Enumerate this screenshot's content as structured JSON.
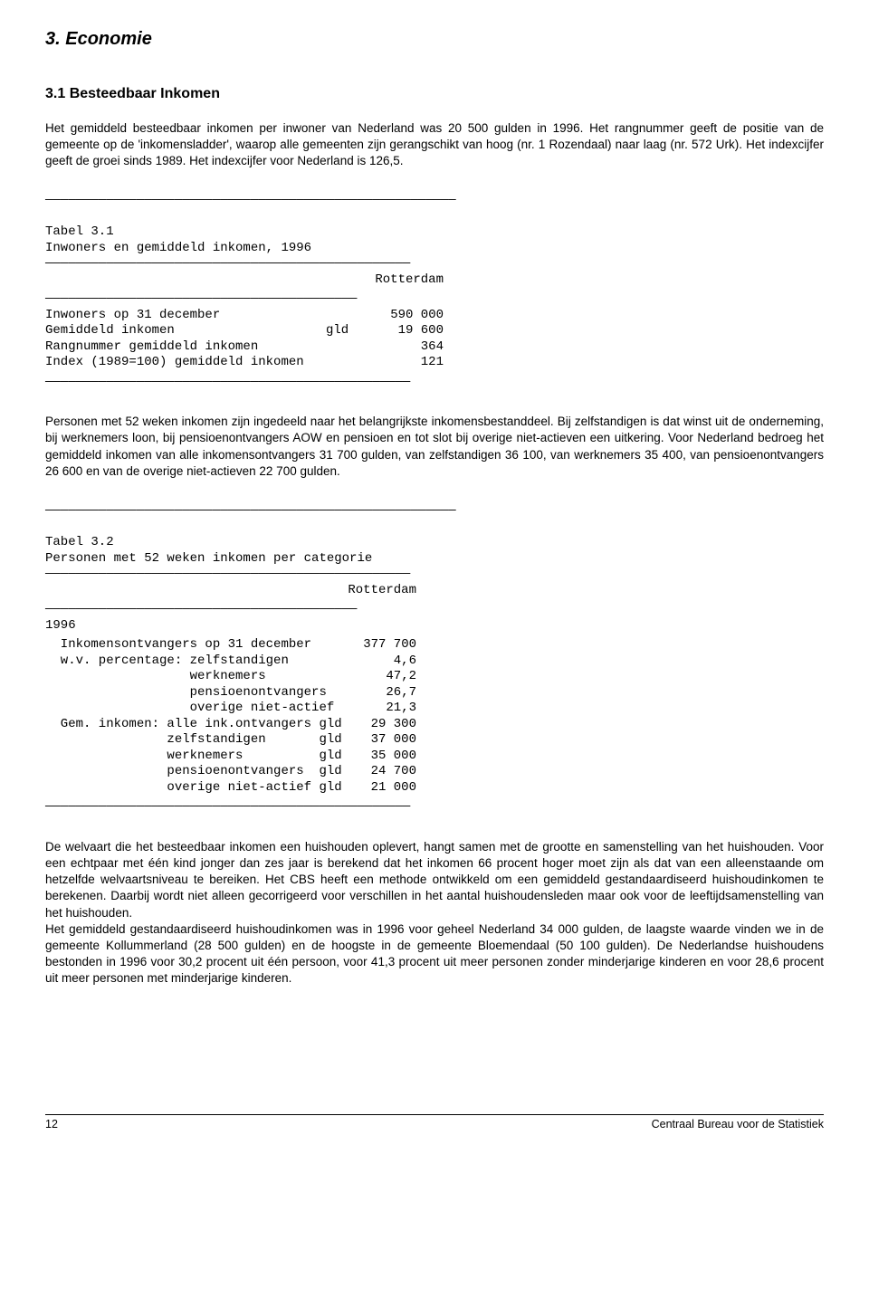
{
  "headings": {
    "h1": "3. Economie",
    "h2": "3.1 Besteedbaar Inkomen"
  },
  "para1": "Het gemiddeld besteedbaar inkomen per inwoner van Nederland was 20 500 gulden in 1996. Het rangnummer geeft de positie van de gemeente op de 'inkomensladder', waarop alle gemeenten zijn gerangschikt van hoog (nr. 1 Rozendaal) naar laag (nr. 572 Urk). Het indexcijfer geeft de groei sinds 1989. Het indexcijfer voor Nederland is 126,5.",
  "table1": {
    "rule_long": "——————————————————————————————————————————————————————",
    "rule_mid": "————————————————————————————————————————————————",
    "rule_short": "—————————————————————————————————————————",
    "title_line": "Tabel 3.1",
    "subtitle_line": "Inwoners en gemiddeld inkomen, 1996",
    "col_header": "Rotterdam",
    "rows": [
      {
        "label": "Inwoners op 31 december",
        "unit": "",
        "value": "590 000"
      },
      {
        "label": "Gemiddeld inkomen",
        "unit": "gld",
        "value": "19 600"
      },
      {
        "label": "Rangnummer gemiddeld inkomen",
        "unit": "",
        "value": "364"
      },
      {
        "label": "Index (1989=100) gemiddeld inkomen",
        "unit": "",
        "value": "121"
      }
    ]
  },
  "para2": "Personen met 52 weken inkomen zijn ingedeeld naar het belangrijkste inkomensbestanddeel. Bij zelfstandigen is dat winst uit de onderneming, bij werknemers loon, bij pensioenontvangers AOW en pensioen en tot slot bij overige niet-actieven een uitkering. Voor Nederland bedroeg het gemiddeld inkomen van alle inkomensontvangers 31 700 gulden, van zelfstandigen 36 100, van werknemers 35 400, van pensioenontvangers 26 600 en van de overige niet-actieven 22 700 gulden.",
  "table2": {
    "rule_long": "——————————————————————————————————————————————————————",
    "rule_mid": "————————————————————————————————————————————————",
    "rule_short": "—————————————————————————————————————————",
    "title_line": "Tabel 3.2",
    "subtitle_line": "Personen met 52 weken inkomen per categorie",
    "col_header": "Rotterdam",
    "year_line": "1996",
    "rows": [
      {
        "label": "  Inkomensontvangers op 31 december",
        "value": "377 700"
      },
      {
        "label": "  w.v. percentage: zelfstandigen",
        "value": "4,6"
      },
      {
        "label": "                   werknemers",
        "value": "47,2"
      },
      {
        "label": "                   pensioenontvangers",
        "value": "26,7"
      },
      {
        "label": "                   overige niet-actief",
        "value": "21,3"
      },
      {
        "label": "  Gem. inkomen: alle ink.ontvangers gld",
        "value": "29 300"
      },
      {
        "label": "                zelfstandigen       gld",
        "value": "37 000"
      },
      {
        "label": "                werknemers          gld",
        "value": "35 000"
      },
      {
        "label": "                pensioenontvangers  gld",
        "value": "24 700"
      },
      {
        "label": "                overige niet-actief gld",
        "value": "21 000"
      }
    ]
  },
  "para3a": "De welvaart die het besteedbaar inkomen een huishouden oplevert, hangt samen met de grootte en samenstelling van het huishouden. Voor een echtpaar met één kind jonger dan zes jaar is berekend dat het inkomen 66 procent hoger moet zijn als dat van een alleenstaande om hetzelfde welvaartsniveau te bereiken. Het CBS heeft een methode ontwikkeld om een gemiddeld gestandaardiseerd huishoudinkomen te berekenen. Daarbij wordt niet alleen gecorrigeerd voor verschillen in het aantal huishoudensleden maar ook voor de leeftijdsamenstelling van het huishouden.",
  "para3b": "Het gemiddeld gestandaardiseerd huishoudinkomen was in 1996 voor geheel Nederland 34 000 gulden, de laagste waarde vinden we in de gemeente Kollummerland (28 500 gulden) en de hoogste in de gemeente Bloemendaal (50 100 gulden). De Nederlandse huishoudens bestonden in 1996 voor 30,2 procent uit één persoon, voor 41,3 procent uit meer personen zonder minderjarige kinderen en voor 28,6 procent uit meer personen met minderjarige kinderen.",
  "footer": {
    "page": "12",
    "source": "Centraal Bureau voor de Statistiek"
  }
}
